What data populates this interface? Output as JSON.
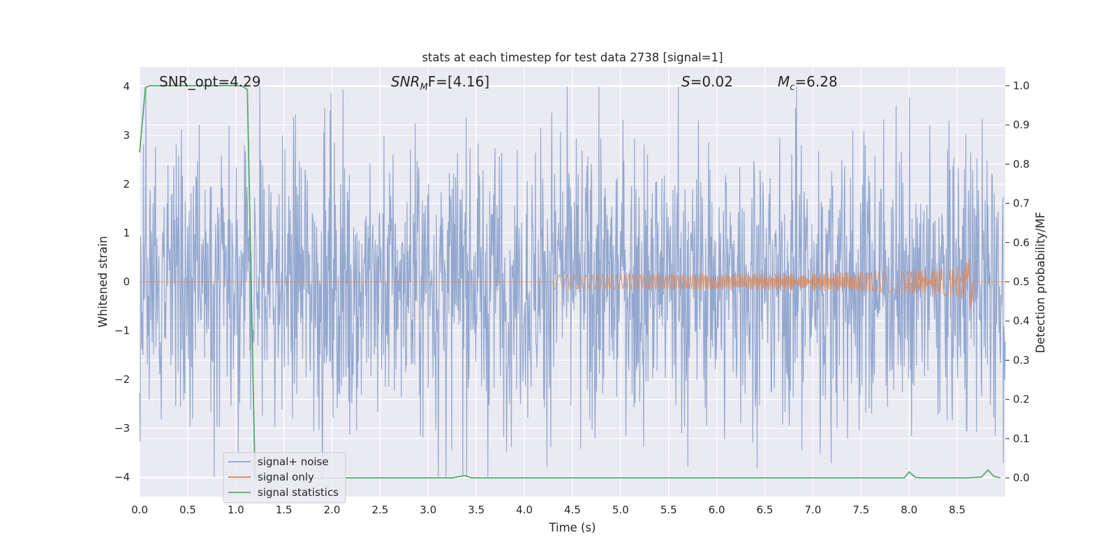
{
  "chart_data": {
    "type": "line",
    "title": "stats at each timestep for test data 2738 [signal=1]",
    "xlabel": "Time (s)",
    "ylabel": "Whitened strain",
    "ylabel_right": "Detection probability/MF",
    "xlim": [
      0.0,
      9.0
    ],
    "ylim": [
      -4.4,
      4.4
    ],
    "ylim_right": [
      -0.0478,
      1.0478
    ],
    "xticks": [
      "0.0",
      "0.5",
      "1.0",
      "1.5",
      "2.0",
      "2.5",
      "3.0",
      "3.5",
      "4.0",
      "4.5",
      "5.0",
      "5.5",
      "6.0",
      "6.5",
      "7.0",
      "7.5",
      "8.0",
      "8.5"
    ],
    "yticks": [
      "4",
      "3",
      "2",
      "1",
      "0",
      "−1",
      "−2",
      "−3",
      "−4"
    ],
    "yticks_right": [
      "1.0",
      "0.9",
      "0.8",
      "0.7",
      "0.6",
      "0.5",
      "0.4",
      "0.3",
      "0.2",
      "0.1",
      "0.0"
    ],
    "grid": true,
    "annotations": {
      "snr_opt": "SNR_opt=4.29",
      "snr_mf_main": "SNR",
      "snr_mf_sub": "M",
      "snr_mf_rest": "F=[4.16]",
      "s_main": "S",
      "s_rest": "=0.02",
      "mc_main": "M",
      "mc_sub": "c",
      "mc_rest": "=6.28"
    },
    "legend": {
      "position": "lower-left",
      "entries": [
        "signal+ noise",
        "signal only",
        "signal statistics"
      ]
    },
    "series": [
      {
        "name": "signal+ noise",
        "color": "#8fa4cc",
        "axis": "left",
        "description_values": "whitened noise, roughly within -2.5..3.0, extremes to about -4 and 4",
        "envelope": {
          "typical_amplitude": 2.0,
          "peak_max": 4.0,
          "peak_min": -4.0
        }
      },
      {
        "name": "signal only",
        "color": "#dd8452",
        "axis": "left",
        "chirp": {
          "t_start": 4.3,
          "t_merge": 8.66,
          "amp_start": 0.01,
          "amp_end": 0.55
        }
      },
      {
        "name": "signal statistics",
        "color": "#55a868",
        "axis": "right",
        "x": [
          0.0,
          0.06,
          0.1,
          0.2,
          0.5,
          0.8,
          1.0,
          1.06,
          1.12,
          1.15,
          1.2,
          1.3,
          2.0,
          3.0,
          3.25,
          3.38,
          3.45,
          4.0,
          5.0,
          6.0,
          7.0,
          7.8,
          7.95,
          8.0,
          8.07,
          8.15,
          8.6,
          8.75,
          8.82,
          8.88,
          8.95
        ],
        "y": [
          0.83,
          0.995,
          1.0,
          1.0,
          1.0,
          1.0,
          1.0,
          1.0,
          0.99,
          0.62,
          0.0,
          0.0,
          0.0,
          0.0,
          0.0,
          0.006,
          0.0,
          0.0,
          0.0,
          0.0,
          0.0,
          0.0,
          0.0,
          0.015,
          0.001,
          0.0,
          0.0,
          0.002,
          0.02,
          0.004,
          0.0
        ]
      }
    ]
  }
}
